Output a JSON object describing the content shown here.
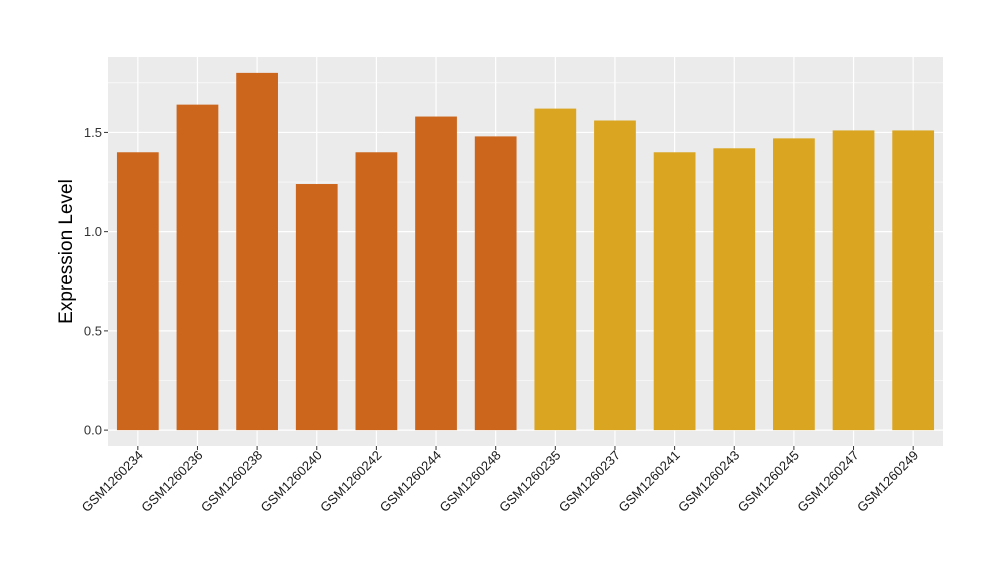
{
  "chart_data": {
    "type": "bar",
    "title": "",
    "xlabel": "",
    "ylabel": "Expression Level",
    "ylim": [
      -0.08,
      1.88
    ],
    "yticks": [
      0.0,
      0.5,
      1.0,
      1.5
    ],
    "ytick_labels": [
      "0.0",
      "0.5",
      "1.0",
      "1.5"
    ],
    "grid": true,
    "legend": "none",
    "categories": [
      "GSM1260234",
      "GSM1260236",
      "GSM1260238",
      "GSM1260240",
      "GSM1260242",
      "GSM1260244",
      "GSM1260248",
      "GSM1260235",
      "GSM1260237",
      "GSM1260241",
      "GSM1260243",
      "GSM1260245",
      "GSM1260247",
      "GSM1260249"
    ],
    "values": [
      1.4,
      1.64,
      1.8,
      1.24,
      1.4,
      1.58,
      1.48,
      1.62,
      1.56,
      1.4,
      1.42,
      1.47,
      1.51,
      1.51
    ],
    "group_index": [
      0,
      0,
      0,
      0,
      0,
      0,
      0,
      1,
      1,
      1,
      1,
      1,
      1,
      1
    ],
    "colors": [
      "#cd661d",
      "#daa520"
    ],
    "panel_background": "#ebebeb",
    "grid_color": "#ffffff"
  }
}
